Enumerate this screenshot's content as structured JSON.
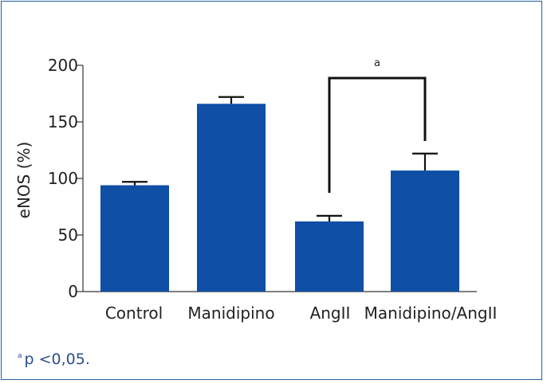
{
  "chart_data": {
    "type": "bar",
    "categories": [
      "Control",
      "Manidipino",
      "AngII",
      "Manidipino/AngII"
    ],
    "values": [
      94,
      166,
      62,
      107
    ],
    "errors": [
      3,
      6,
      5,
      15
    ],
    "ylabel": "eNOS (%)",
    "xlabel": "",
    "ylim": [
      0,
      200
    ],
    "yticks": [
      "0",
      "50",
      "100",
      "150",
      "200"
    ],
    "bar_color": "#0f4fa6",
    "significance": {
      "from": "AngII",
      "to": "Manidipino/AngII",
      "label": "a"
    }
  },
  "footnote": {
    "marker": "a",
    "text": "p <0,05."
  }
}
